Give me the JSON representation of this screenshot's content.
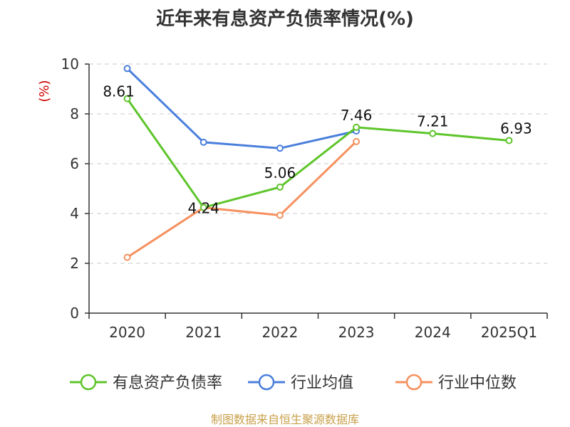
{
  "chart_data": {
    "type": "line",
    "title": "近年来有息资产负债率情况(%)",
    "ylabel": "(%)",
    "categories": [
      "2020",
      "2021",
      "2022",
      "2023",
      "2024",
      "2025Q1"
    ],
    "ylim": [
      0,
      10
    ],
    "yticks": [
      "0",
      "2",
      "4",
      "6",
      "8",
      "10"
    ],
    "grid": true,
    "legend_position": "bottom",
    "series": [
      {
        "name": "有息资产负债率",
        "color": "#5ec52b",
        "values": [
          8.61,
          4.24,
          5.06,
          7.46,
          7.21,
          6.93
        ],
        "labels": [
          "8.61",
          "4.24",
          "5.06",
          "7.46",
          "7.21",
          "6.93"
        ]
      },
      {
        "name": "行业均值",
        "color": "#4a7fdc",
        "values": [
          9.82,
          6.86,
          6.62,
          7.31,
          null,
          null
        ]
      },
      {
        "name": "行业中位数",
        "color": "#f5905e",
        "values": [
          2.24,
          4.24,
          3.93,
          6.89,
          null,
          null
        ]
      }
    ]
  },
  "source": "制图数据来自恒生聚源数据库"
}
